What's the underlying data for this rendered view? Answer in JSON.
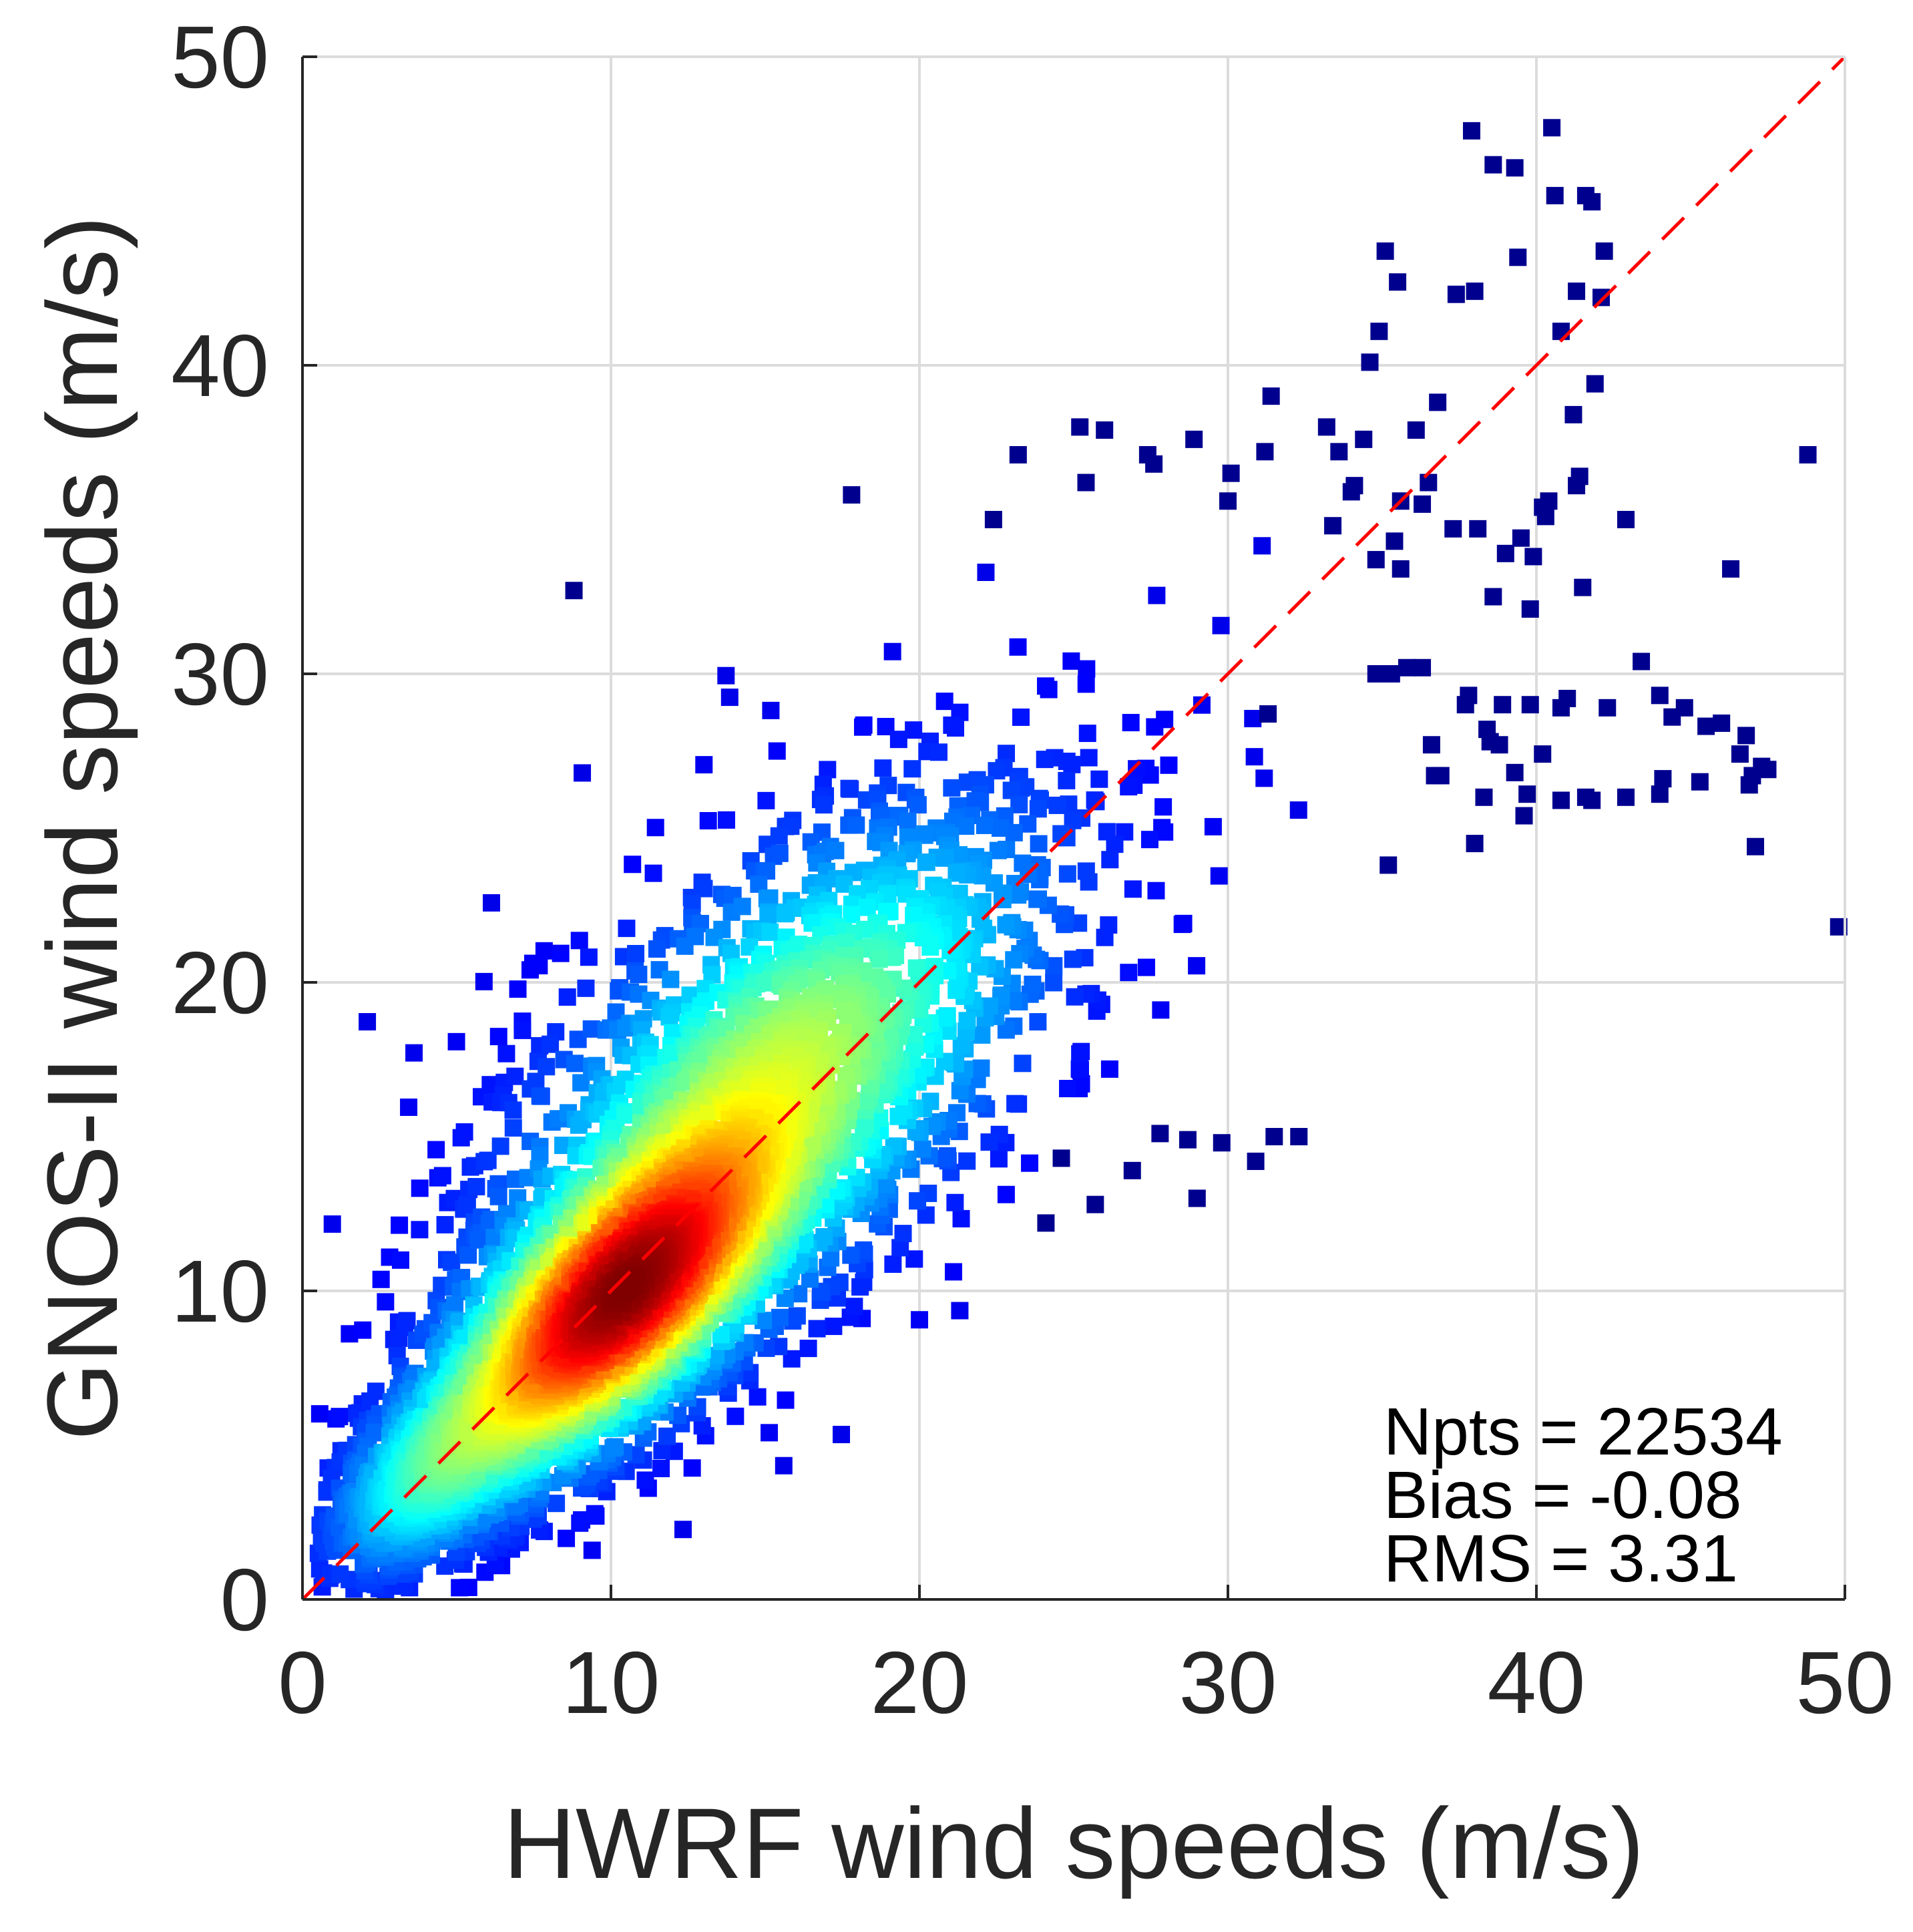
{
  "chart_data": {
    "type": "scatter",
    "title": "",
    "xlabel": "HWRF wind speeds (m/s)",
    "ylabel": "GNOS-II wind speeds (m/s)",
    "xlim": [
      0,
      50
    ],
    "ylim": [
      0,
      50
    ],
    "xticks": [
      "0",
      "10",
      "20",
      "30",
      "40",
      "50"
    ],
    "yticks": [
      "0",
      "10",
      "20",
      "30",
      "40",
      "50"
    ],
    "grid": true,
    "colormap": "jet",
    "color_encodes": "point density",
    "reference_line": {
      "type": "1:1 line",
      "style": "dashed",
      "color": "#ff0000",
      "from": [
        0,
        0
      ],
      "to": [
        50,
        50
      ]
    },
    "stats": [
      "Npts = 22534",
      "Bias = -0.08",
      "RMS = 3.31"
    ],
    "outlier_points": [
      [
        8.8,
        32.7
      ],
      [
        17.8,
        35.8
      ],
      [
        22.4,
        35
      ],
      [
        23.2,
        37.1
      ],
      [
        25.2,
        38
      ],
      [
        26,
        37.9
      ],
      [
        25.4,
        36.2
      ],
      [
        27.4,
        37.1
      ],
      [
        27.6,
        36.8
      ],
      [
        28.9,
        37.6
      ],
      [
        30.1,
        36.5
      ],
      [
        30,
        35.6
      ],
      [
        31.2,
        37.2
      ],
      [
        33.2,
        38
      ],
      [
        33.6,
        37.2
      ],
      [
        34.4,
        37.6
      ],
      [
        36.1,
        37.9
      ],
      [
        36.8,
        38.8
      ],
      [
        35.6,
        35.6
      ],
      [
        34,
        35.9
      ],
      [
        34.1,
        36.1
      ],
      [
        33.4,
        34.8
      ],
      [
        31.4,
        39
      ],
      [
        34.6,
        40.1
      ],
      [
        34.9,
        41.1
      ],
      [
        35.5,
        42.7
      ],
      [
        35.1,
        43.7
      ],
      [
        37.4,
        42.3
      ],
      [
        38,
        42.4
      ],
      [
        37.9,
        47.6
      ],
      [
        38.6,
        46.5
      ],
      [
        39.3,
        46.4
      ],
      [
        39.4,
        43.5
      ],
      [
        40.6,
        45.5
      ],
      [
        40.5,
        47.7
      ],
      [
        41.6,
        45.5
      ],
      [
        41.8,
        45.3
      ],
      [
        42.2,
        43.7
      ],
      [
        42.1,
        42.2
      ],
      [
        41.3,
        42.4
      ],
      [
        40.8,
        41.1
      ],
      [
        41.9,
        39.4
      ],
      [
        41.2,
        38.4
      ],
      [
        41.4,
        36.4
      ],
      [
        41.3,
        36.1
      ],
      [
        40.4,
        35.6
      ],
      [
        40.2,
        35.4
      ],
      [
        40.3,
        35.1
      ],
      [
        39.5,
        34.4
      ],
      [
        39.0,
        33.9
      ],
      [
        38.1,
        34.7
      ],
      [
        37.3,
        34.7
      ],
      [
        36.5,
        36.2
      ],
      [
        36.3,
        35.5
      ],
      [
        35.4,
        34.3
      ],
      [
        34.8,
        33.7
      ],
      [
        35.6,
        33.4
      ],
      [
        38.6,
        32.5
      ],
      [
        39.8,
        32.1
      ],
      [
        39.9,
        33.8
      ],
      [
        41.5,
        32.8
      ],
      [
        42.9,
        35
      ],
      [
        46.3,
        33.4
      ],
      [
        48.8,
        37.1
      ],
      [
        49.8,
        21.8
      ],
      [
        47.1,
        24.4
      ],
      [
        43.4,
        30.4
      ],
      [
        42.3,
        28.9
      ],
      [
        44,
        29.3
      ],
      [
        44.4,
        28.6
      ],
      [
        44.8,
        28.9
      ],
      [
        45.5,
        28.3
      ],
      [
        46.0,
        28.4
      ],
      [
        46.6,
        27.4
      ],
      [
        46.8,
        28
      ],
      [
        47.3,
        27
      ],
      [
        47.5,
        26.9
      ],
      [
        46.9,
        26.4
      ],
      [
        47.0,
        26.7
      ],
      [
        45.3,
        26.5
      ],
      [
        44.1,
        26.6
      ],
      [
        44.0,
        26.1
      ],
      [
        42.9,
        26.0
      ],
      [
        41.6,
        26.0
      ],
      [
        41.8,
        25.9
      ],
      [
        40.8,
        25.9
      ],
      [
        39.6,
        25.4
      ],
      [
        39.7,
        26.1
      ],
      [
        39.3,
        26.8
      ],
      [
        38.3,
        26.0
      ],
      [
        38.0,
        24.5
      ],
      [
        38.5,
        27.8
      ],
      [
        38.8,
        27.7
      ],
      [
        38.4,
        28.2
      ],
      [
        38.9,
        29.0
      ],
      [
        39.8,
        29.0
      ],
      [
        40.2,
        27.4
      ],
      [
        40.8,
        28.9
      ],
      [
        41.0,
        29.2
      ],
      [
        37.7,
        29.0
      ],
      [
        37.8,
        29.3
      ],
      [
        36.7,
        26.7
      ],
      [
        36.9,
        26.7
      ],
      [
        36.6,
        27.7
      ],
      [
        35.3,
        30.0
      ],
      [
        35.8,
        30.2
      ],
      [
        36.3,
        30.2
      ],
      [
        34.8,
        30.0
      ],
      [
        35.2,
        23.8
      ],
      [
        31.3,
        28.7
      ],
      [
        24.1,
        12.2
      ],
      [
        29.0,
        13.0
      ],
      [
        25.7,
        12.8
      ],
      [
        24.6,
        14.3
      ],
      [
        26.9,
        13.9
      ],
      [
        31.5,
        15.0
      ],
      [
        32.3,
        15.0
      ],
      [
        30.9,
        14.2
      ],
      [
        27.8,
        15.1
      ],
      [
        28.7,
        14.9
      ],
      [
        29.8,
        14.8
      ]
    ]
  }
}
